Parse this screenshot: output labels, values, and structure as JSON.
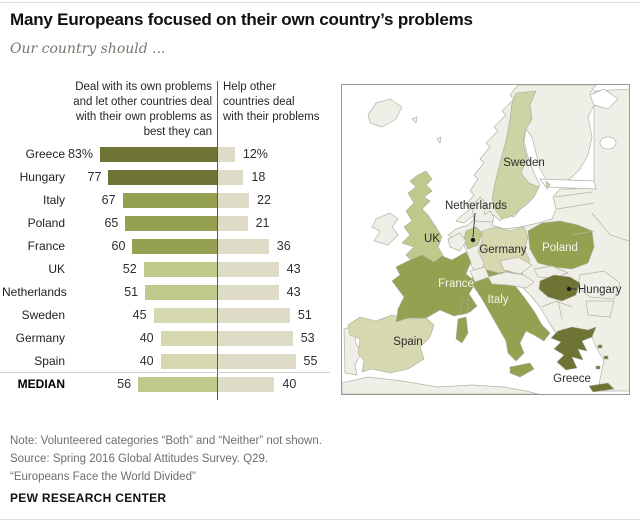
{
  "title": "Many Europeans focused on their own country’s problems",
  "subtitle": "Our country should ...",
  "chart_data": {
    "type": "bar",
    "title": "Many Europeans focused on their own country’s problems",
    "subtitle": "Our country should ...",
    "left_header": "Deal with its own problems\nand let other countries deal\nwith their own problems as\nbest they can",
    "right_header": "Help other\ncountries deal\nwith their problems",
    "unit": "%",
    "series": [
      {
        "name": "Deal with its own problems",
        "side": "left"
      },
      {
        "name": "Help other countries deal with their problems",
        "side": "right"
      }
    ],
    "rows": [
      {
        "country": "Greece",
        "own": 83,
        "own_label": "83%",
        "help": 12,
        "help_label": "12%",
        "tone": "dark",
        "is_median": false
      },
      {
        "country": "Hungary",
        "own": 77,
        "own_label": "77",
        "help": 18,
        "help_label": "18",
        "tone": "dark",
        "is_median": false
      },
      {
        "country": "Italy",
        "own": 67,
        "own_label": "67",
        "help": 22,
        "help_label": "22",
        "tone": "medium",
        "is_median": false
      },
      {
        "country": "Poland",
        "own": 65,
        "own_label": "65",
        "help": 21,
        "help_label": "21",
        "tone": "medium",
        "is_median": false
      },
      {
        "country": "France",
        "own": 60,
        "own_label": "60",
        "help": 36,
        "help_label": "36",
        "tone": "medium",
        "is_median": false
      },
      {
        "country": "UK",
        "own": 52,
        "own_label": "52",
        "help": 43,
        "help_label": "43",
        "tone": "light",
        "is_median": false
      },
      {
        "country": "Netherlands",
        "own": 51,
        "own_label": "51",
        "help": 43,
        "help_label": "43",
        "tone": "light",
        "is_median": false
      },
      {
        "country": "Sweden",
        "own": 45,
        "own_label": "45",
        "help": 51,
        "help_label": "51",
        "tone": "lighter",
        "is_median": false
      },
      {
        "country": "Germany",
        "own": 40,
        "own_label": "40",
        "help": 53,
        "help_label": "53",
        "tone": "lighter",
        "is_median": false
      },
      {
        "country": "Spain",
        "own": 40,
        "own_label": "40",
        "help": 55,
        "help_label": "55",
        "tone": "lighter",
        "is_median": false
      },
      {
        "country": "MEDIAN",
        "own": 56,
        "own_label": "56",
        "help": 40,
        "help_label": "40",
        "tone": "light",
        "is_median": true
      }
    ],
    "xlim": [
      0,
      83
    ],
    "grid": false,
    "legend_position": "column-headers"
  },
  "colors": {
    "dark": "#6d7434",
    "medium": "#95a150",
    "light": "#c0c98c",
    "mlight": "#cdd3a4",
    "lighter": "#d6d9af",
    "beige": "#dedcc6",
    "land": "#f0efe7",
    "sea": "#ffffff",
    "axis": "#58595b"
  },
  "map": {
    "labels": {
      "sweden": "Sweden",
      "netherlands": "Netherlands",
      "uk": "UK",
      "germany": "Germany",
      "poland": "Poland",
      "france": "France",
      "italy": "Italy",
      "spain": "Spain",
      "hungary": "Hungary",
      "greece": "Greece"
    }
  },
  "footer": {
    "note": "Note: Volunteered categories “Both” and “Neither” not shown.",
    "source": "Source: Spring 2016 Global Attitudes Survey. Q29.",
    "report": "“Europeans Face the World Divided”",
    "brand": "PEW RESEARCH CENTER"
  }
}
